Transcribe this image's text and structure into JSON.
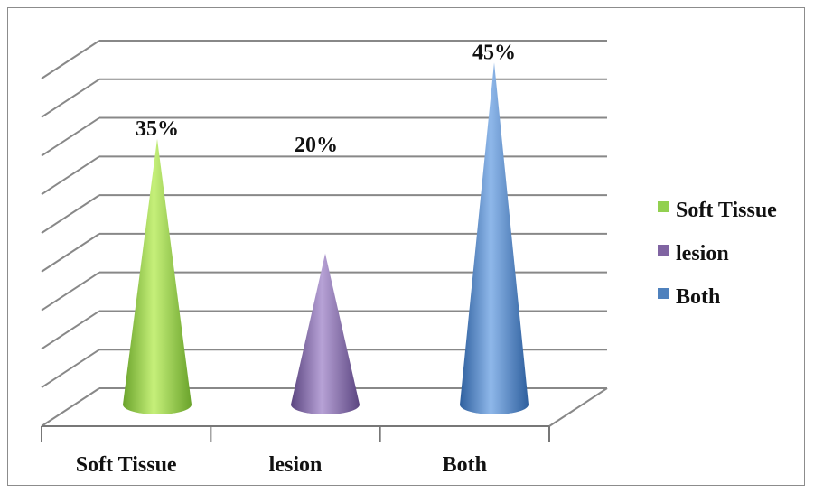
{
  "chart_data": {
    "type": "bar",
    "style": "3d-cone",
    "categories": [
      "Soft Tissue",
      "lesion",
      "Both"
    ],
    "series": [
      {
        "name": "Soft Tissue",
        "values": [
          35,
          null,
          null
        ]
      },
      {
        "name": "lesion",
        "values": [
          null,
          20,
          null
        ]
      },
      {
        "name": "Both",
        "values": [
          null,
          null,
          45
        ]
      }
    ],
    "values": [
      35,
      20,
      45
    ],
    "data_labels": [
      "35%",
      "20%",
      "45%"
    ],
    "legend": [
      "Soft Tissue",
      "lesion",
      "Both"
    ],
    "legend_position": "right",
    "grid": true,
    "ylim": [
      0,
      50
    ],
    "colors": {
      "soft_tissue": "#92d050",
      "lesion": "#8064a2",
      "both": "#4f81bd",
      "gridline": "#888888"
    }
  }
}
